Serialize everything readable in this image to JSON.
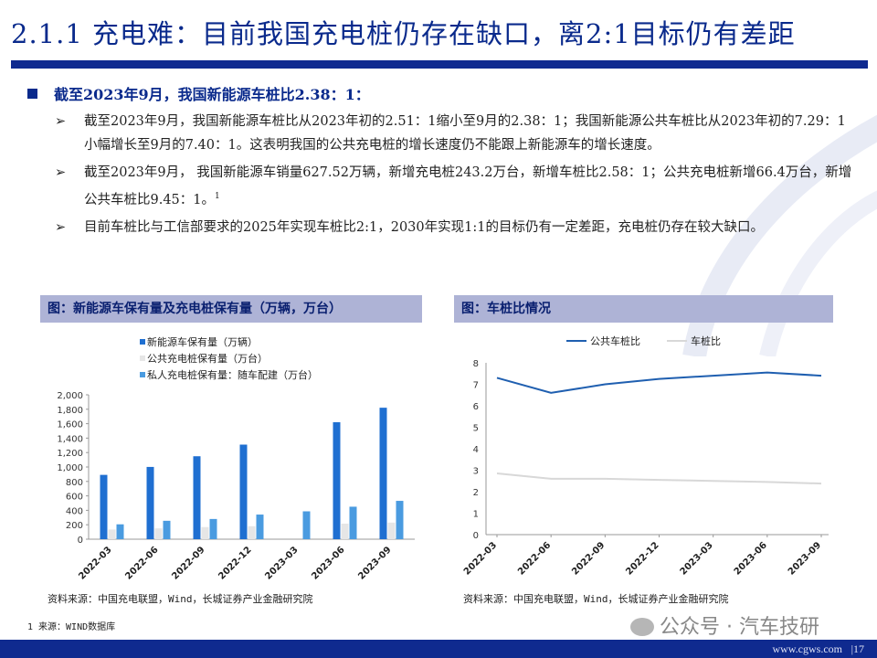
{
  "title": "2.1.1 充电难：目前我国充电桩仍存在缺口，离2:1目标仍有差距",
  "heading": "截至2023年9月，我国新能源车桩比2.38：1：",
  "bullets": [
    "截至2023年9月，我国新能源车桩比从2023年初的2.51：1缩小至9月的2.38：1；我国新能源公共车桩比从2023年初的7.29：1小幅增长至9月的7.40：1。这表明我国的公共充电桩的增长速度仍不能跟上新能源车的增长速度。",
    "截至2023年9月，  我国新能源车销量627.52万辆，新增充电桩243.2万台，新增车桩比2.58：1；公共充电桩新增66.4万台，新增公共车桩比9.45：1。",
    "目前车桩比与工信部要求的2025年实现车桩比2:1，2030年实现1:1的目标仍有一定差距，充电桩仍存在较大缺口。"
  ],
  "bullet2_sup": "1",
  "left_panel_title": "图：新能源车保有量及充电桩保有量（万辆，万台）",
  "right_panel_title": "图：车桩比情况",
  "left_source": "资料来源：中国充电联盟，Wind，长城证券产业金融研究院",
  "right_source": "资料来源：中国充电联盟，Wind，长城证券产业金融研究院",
  "footnote": "1 来源：WIND数据库",
  "watermark": "公众号 · 汽车技研",
  "footer_url": "www.cgws.com",
  "footer_page": "|17",
  "chart_data": [
    {
      "type": "bar",
      "categories": [
        "2022-03",
        "2022-06",
        "2022-09",
        "2022-12",
        "2023-03",
        "2023-06",
        "2023-09"
      ],
      "series": [
        {
          "name": "新能源车保有量（万辆）",
          "color": "#1f6fd1",
          "values": [
            891,
            1001,
            1149,
            1310,
            null,
            1620,
            1821
          ]
        },
        {
          "name": "公共充电桩保有量（万台）",
          "color": "#e6e6e6",
          "values": [
            134,
            150,
            168,
            180,
            null,
            215,
            230
          ]
        },
        {
          "name": "私人充电桩保有量：随车配建（万台）",
          "color": "#4a9be0",
          "values": [
            206,
            255,
            280,
            341,
            386,
            450,
            531
          ]
        }
      ],
      "yticks": [
        "0",
        "200",
        "400",
        "600",
        "800",
        "1,000",
        "1,200",
        "1,400",
        "1,600",
        "1,800",
        "2,000"
      ],
      "ylim": [
        0,
        2000
      ]
    },
    {
      "type": "line",
      "x": [
        "2022-03",
        "2022-06",
        "2022-09",
        "2022-12",
        "2023-03",
        "2023-06",
        "2023-09"
      ],
      "series": [
        {
          "name": "公共车桩比",
          "color": "#1f5fb0",
          "values": [
            7.3,
            6.6,
            7.0,
            7.25,
            7.4,
            7.55,
            7.4
          ]
        },
        {
          "name": "车桩比",
          "color": "#d8d8d8",
          "values": [
            2.85,
            2.6,
            2.6,
            2.55,
            2.5,
            2.45,
            2.38
          ]
        }
      ],
      "yticks": [
        "0",
        "1",
        "2",
        "3",
        "4",
        "5",
        "6",
        "7",
        "8"
      ],
      "ylim": [
        0,
        8
      ]
    }
  ]
}
